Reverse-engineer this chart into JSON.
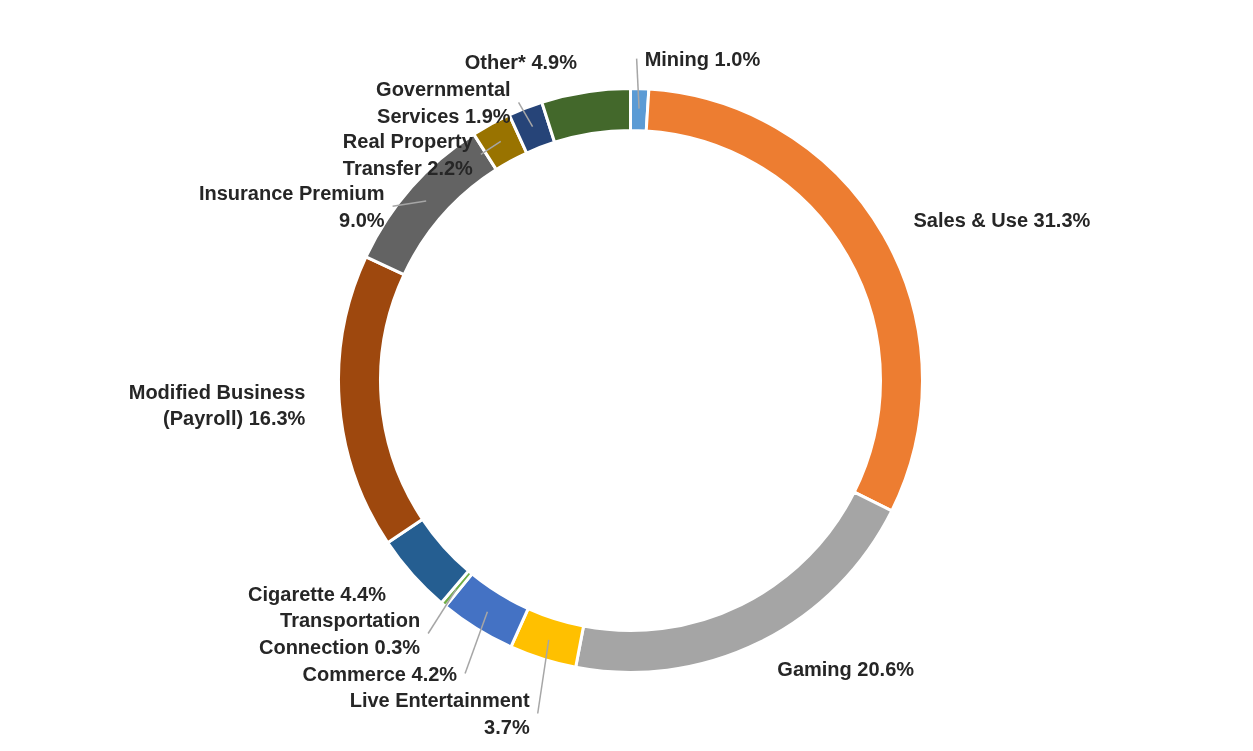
{
  "chart_data": {
    "type": "donut",
    "categories": [
      "Mining",
      "Sales & Use",
      "Gaming",
      "Live Entertainment",
      "Commerce",
      "Transportation Connection",
      "Cigarette",
      "Modified Business (Payroll)",
      "Insurance Premium",
      "Real Property Transfer",
      "Governmental Services",
      "Other*"
    ],
    "values": [
      1.0,
      31.3,
      20.6,
      3.7,
      4.2,
      0.3,
      4.4,
      16.3,
      9.0,
      2.2,
      1.9,
      4.9
    ],
    "value_labels": [
      "1.0%",
      "31.3%",
      "20.6%",
      "3.7%",
      "4.2%",
      "0.3%",
      "4.4%",
      "16.3%",
      "9.0%",
      "2.2%",
      "1.9%",
      "4.9%"
    ],
    "colors": [
      "#5b9bd5",
      "#ed7d31",
      "#a5a5a5",
      "#ffc000",
      "#4472c4",
      "#70ad47",
      "#255e91",
      "#9e480e",
      "#636363",
      "#997300",
      "#264478",
      "#43682b"
    ]
  }
}
